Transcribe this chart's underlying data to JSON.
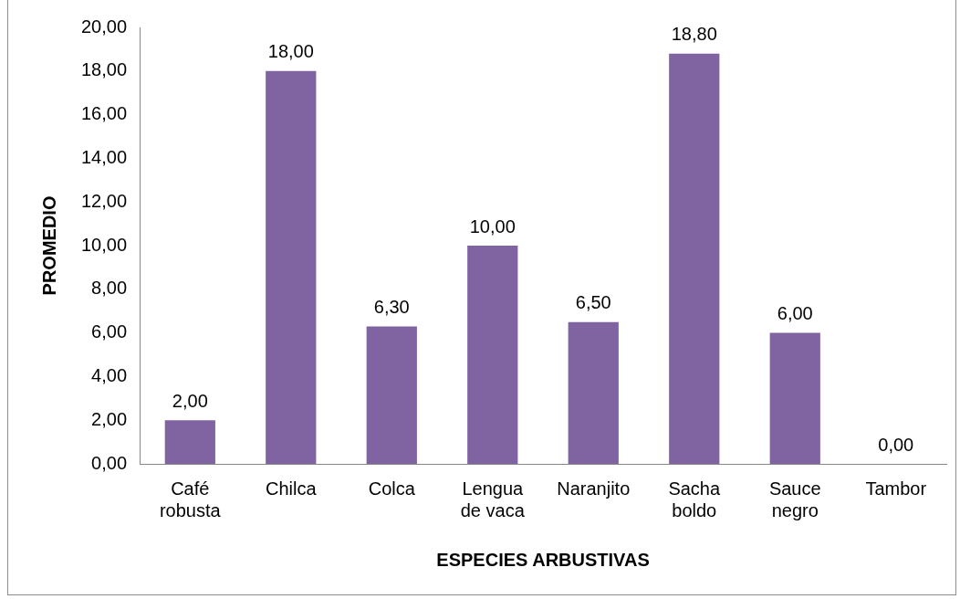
{
  "chart_data": {
    "type": "bar",
    "categories": [
      "Café robusta",
      "Chilca",
      "Colca",
      "Lengua de vaca",
      "Naranjito",
      "Sacha boldo",
      "Sauce negro",
      "Tambor"
    ],
    "values": [
      2,
      18,
      6.3,
      10,
      6.5,
      18.8,
      6,
      0
    ],
    "value_labels": [
      "2,00",
      "18,00",
      "6,30",
      "10,00",
      "6,50",
      "18,80",
      "6,00",
      "0,00"
    ],
    "color": "#8064a2",
    "xlabel": "ESPECIES ARBUSTIVAS",
    "ylabel": "PROMEDIO",
    "ylim": [
      0,
      20
    ],
    "yticks": [
      {
        "value": 0,
        "label": "0,00"
      },
      {
        "value": 2,
        "label": "2,00"
      },
      {
        "value": 4,
        "label": "4,00"
      },
      {
        "value": 6,
        "label": "6,00"
      },
      {
        "value": 8,
        "label": "8,00"
      },
      {
        "value": 10,
        "label": "10,00"
      },
      {
        "value": 12,
        "label": "12,00"
      },
      {
        "value": 14,
        "label": "14,00"
      },
      {
        "value": 16,
        "label": "16,00"
      },
      {
        "value": 18,
        "label": "18,00"
      },
      {
        "value": 20,
        "label": "20,00"
      }
    ],
    "grid": false,
    "legend": false
  }
}
